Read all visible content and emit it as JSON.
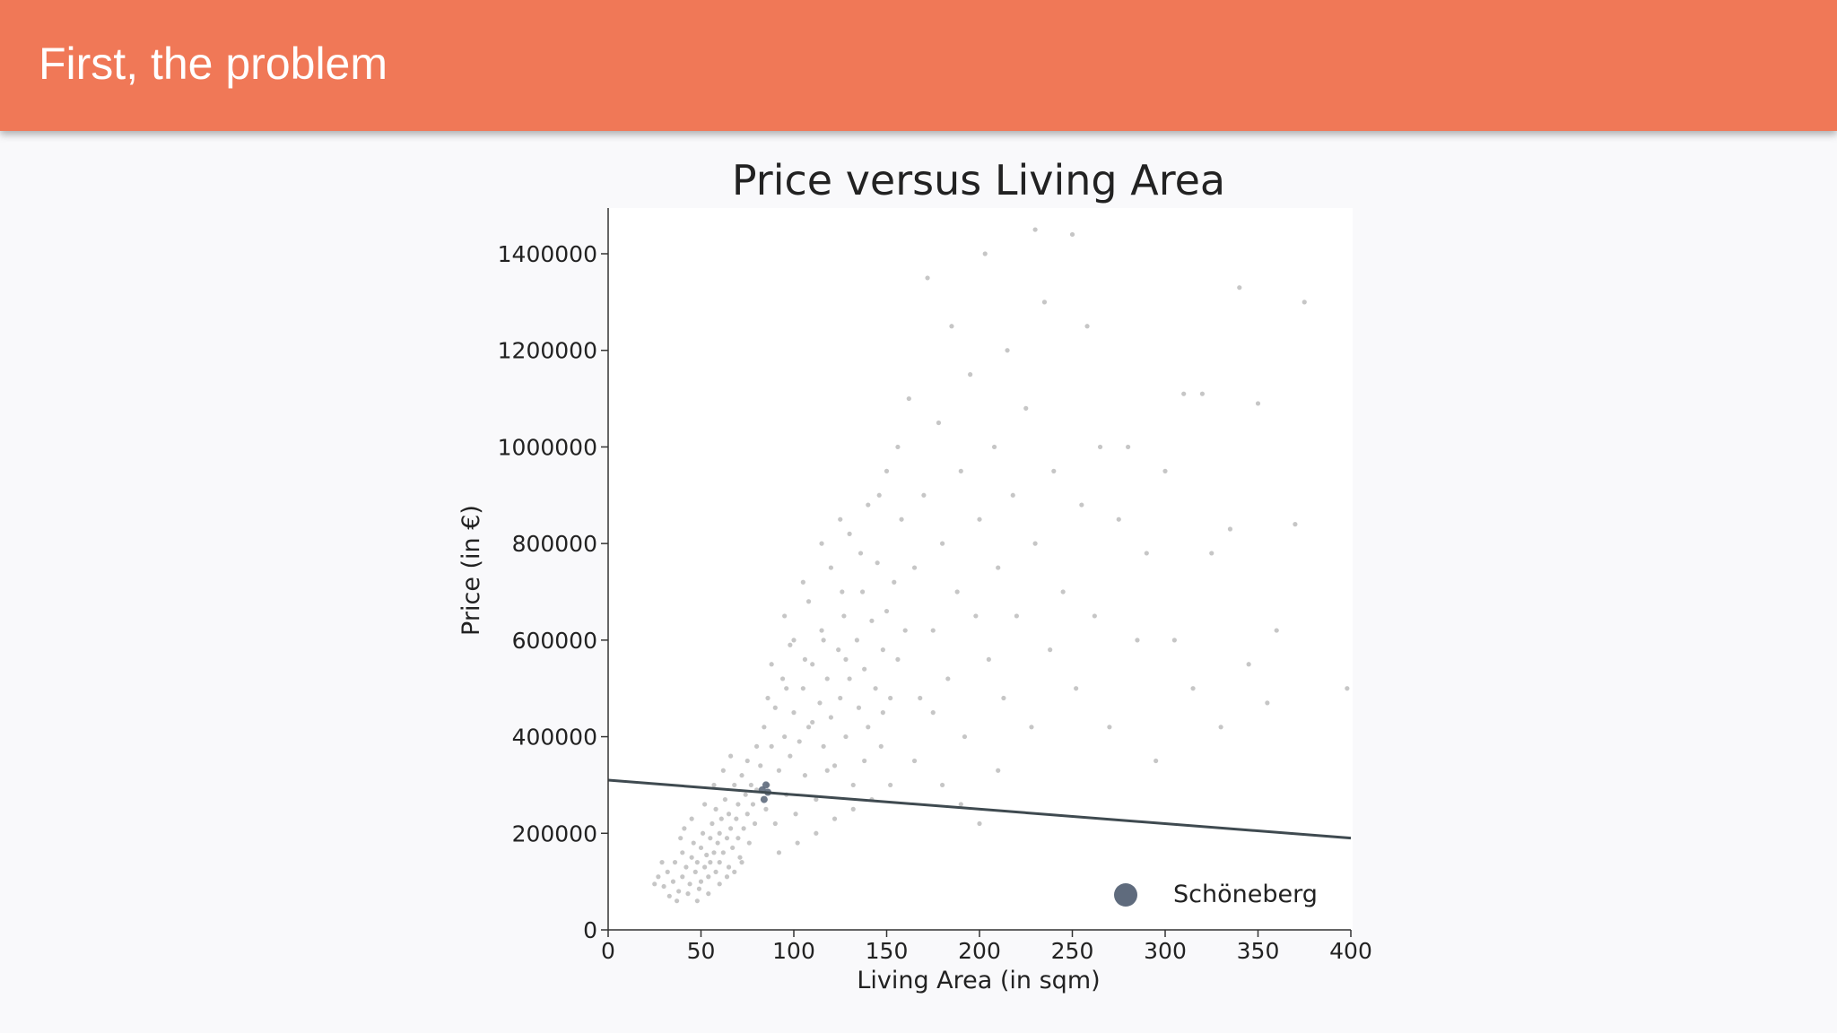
{
  "header": {
    "title": "First, the problem",
    "color": "#f07857"
  },
  "chart_data": {
    "type": "scatter",
    "title": "Price versus Living Area",
    "xlabel": "Living Area (in sqm)",
    "ylabel": "Price (in €)",
    "xlim": [
      0,
      400
    ],
    "ylim": [
      0,
      1500000
    ],
    "xticks": [
      0,
      50,
      100,
      150,
      200,
      250,
      300,
      350,
      400
    ],
    "yticks": [
      0,
      200000,
      400000,
      600000,
      800000,
      1000000,
      1200000,
      1400000
    ],
    "grid": false,
    "legend": {
      "placement": "bottom-right",
      "entries": [
        "Schöneberg"
      ]
    },
    "series": [
      {
        "color": "#808080",
        "points": [
          [
            30,
            90000
          ],
          [
            32,
            120000
          ],
          [
            35,
            100000
          ],
          [
            36,
            140000
          ],
          [
            38,
            80000
          ],
          [
            40,
            110000
          ],
          [
            40,
            160000
          ],
          [
            42,
            130000
          ],
          [
            44,
            95000
          ],
          [
            45,
            150000
          ],
          [
            46,
            180000
          ],
          [
            47,
            120000
          ],
          [
            48,
            140000
          ],
          [
            50,
            100000
          ],
          [
            50,
            170000
          ],
          [
            51,
            200000
          ],
          [
            52,
            130000
          ],
          [
            53,
            155000
          ],
          [
            54,
            110000
          ],
          [
            55,
            190000
          ],
          [
            55,
            140000
          ],
          [
            56,
            220000
          ],
          [
            57,
            160000
          ],
          [
            58,
            120000
          ],
          [
            58,
            250000
          ],
          [
            59,
            180000
          ],
          [
            60,
            140000
          ],
          [
            60,
            200000
          ],
          [
            61,
            230000
          ],
          [
            62,
            160000
          ],
          [
            63,
            270000
          ],
          [
            64,
            190000
          ],
          [
            65,
            130000
          ],
          [
            65,
            240000
          ],
          [
            66,
            210000
          ],
          [
            67,
            170000
          ],
          [
            68,
            300000
          ],
          [
            69,
            230000
          ],
          [
            70,
            190000
          ],
          [
            70,
            260000
          ],
          [
            71,
            150000
          ],
          [
            72,
            320000
          ],
          [
            73,
            210000
          ],
          [
            74,
            280000
          ],
          [
            75,
            240000
          ],
          [
            75,
            350000
          ],
          [
            76,
            180000
          ],
          [
            77,
            300000
          ],
          [
            78,
            260000
          ],
          [
            79,
            220000
          ],
          [
            80,
            380000
          ],
          [
            80,
            290000
          ],
          [
            33,
            70000
          ],
          [
            37,
            60000
          ],
          [
            43,
            75000
          ],
          [
            49,
            85000
          ],
          [
            27,
            110000
          ],
          [
            25,
            95000
          ],
          [
            29,
            140000
          ],
          [
            39,
            190000
          ],
          [
            41,
            210000
          ],
          [
            45,
            230000
          ],
          [
            52,
            260000
          ],
          [
            57,
            300000
          ],
          [
            62,
            330000
          ],
          [
            66,
            360000
          ],
          [
            48,
            60000
          ],
          [
            54,
            75000
          ],
          [
            60,
            95000
          ],
          [
            64,
            110000
          ],
          [
            68,
            120000
          ],
          [
            72,
            140000
          ],
          [
            82,
            340000
          ],
          [
            84,
            420000
          ],
          [
            85,
            250000
          ],
          [
            86,
            300000
          ],
          [
            88,
            380000
          ],
          [
            90,
            460000
          ],
          [
            90,
            220000
          ],
          [
            92,
            330000
          ],
          [
            94,
            520000
          ],
          [
            95,
            400000
          ],
          [
            96,
            280000
          ],
          [
            98,
            360000
          ],
          [
            100,
            450000
          ],
          [
            100,
            600000
          ],
          [
            101,
            240000
          ],
          [
            103,
            390000
          ],
          [
            105,
            500000
          ],
          [
            106,
            320000
          ],
          [
            108,
            680000
          ],
          [
            110,
            430000
          ],
          [
            110,
            550000
          ],
          [
            112,
            270000
          ],
          [
            114,
            470000
          ],
          [
            115,
            620000
          ],
          [
            116,
            380000
          ],
          [
            118,
            520000
          ],
          [
            120,
            750000
          ],
          [
            120,
            440000
          ],
          [
            122,
            340000
          ],
          [
            124,
            580000
          ],
          [
            125,
            480000
          ],
          [
            127,
            650000
          ],
          [
            128,
            400000
          ],
          [
            130,
            520000
          ],
          [
            130,
            820000
          ],
          [
            132,
            300000
          ],
          [
            134,
            600000
          ],
          [
            135,
            460000
          ],
          [
            137,
            700000
          ],
          [
            138,
            540000
          ],
          [
            140,
            420000
          ],
          [
            140,
            880000
          ],
          [
            142,
            640000
          ],
          [
            144,
            500000
          ],
          [
            145,
            760000
          ],
          [
            147,
            380000
          ],
          [
            148,
            580000
          ],
          [
            150,
            660000
          ],
          [
            150,
            950000
          ],
          [
            152,
            480000
          ],
          [
            154,
            720000
          ],
          [
            156,
            560000
          ],
          [
            158,
            850000
          ],
          [
            160,
            620000
          ],
          [
            95,
            650000
          ],
          [
            105,
            720000
          ],
          [
            115,
            800000
          ],
          [
            125,
            850000
          ],
          [
            88,
            550000
          ],
          [
            92,
            160000
          ],
          [
            102,
            180000
          ],
          [
            112,
            200000
          ],
          [
            122,
            230000
          ],
          [
            132,
            250000
          ],
          [
            142,
            270000
          ],
          [
            152,
            300000
          ],
          [
            98,
            590000
          ],
          [
            108,
            420000
          ],
          [
            118,
            330000
          ],
          [
            128,
            560000
          ],
          [
            138,
            350000
          ],
          [
            148,
            450000
          ],
          [
            86,
            480000
          ],
          [
            96,
            500000
          ],
          [
            106,
            560000
          ],
          [
            116,
            600000
          ],
          [
            126,
            700000
          ],
          [
            136,
            780000
          ],
          [
            146,
            900000
          ],
          [
            156,
            1000000
          ],
          [
            162,
            1100000
          ],
          [
            165,
            750000
          ],
          [
            168,
            480000
          ],
          [
            170,
            900000
          ],
          [
            172,
            1350000
          ],
          [
            175,
            620000
          ],
          [
            178,
            1050000
          ],
          [
            180,
            800000
          ],
          [
            183,
            520000
          ],
          [
            185,
            1250000
          ],
          [
            188,
            700000
          ],
          [
            190,
            950000
          ],
          [
            192,
            400000
          ],
          [
            195,
            1150000
          ],
          [
            198,
            650000
          ],
          [
            200,
            850000
          ],
          [
            203,
            1400000
          ],
          [
            205,
            560000
          ],
          [
            208,
            1000000
          ],
          [
            210,
            750000
          ],
          [
            213,
            480000
          ],
          [
            215,
            1200000
          ],
          [
            218,
            900000
          ],
          [
            220,
            650000
          ],
          [
            225,
            1080000
          ],
          [
            228,
            420000
          ],
          [
            230,
            800000
          ],
          [
            235,
            1300000
          ],
          [
            238,
            580000
          ],
          [
            240,
            950000
          ],
          [
            245,
            700000
          ],
          [
            250,
            1440000
          ],
          [
            252,
            500000
          ],
          [
            255,
            880000
          ],
          [
            258,
            1250000
          ],
          [
            262,
            650000
          ],
          [
            265,
            1000000
          ],
          [
            270,
            420000
          ],
          [
            275,
            850000
          ],
          [
            280,
            1000000
          ],
          [
            285,
            600000
          ],
          [
            290,
            780000
          ],
          [
            295,
            350000
          ],
          [
            300,
            950000
          ],
          [
            305,
            600000
          ],
          [
            310,
            1110000
          ],
          [
            315,
            500000
          ],
          [
            320,
            1110000
          ],
          [
            325,
            780000
          ],
          [
            330,
            420000
          ],
          [
            335,
            830000
          ],
          [
            340,
            1330000
          ],
          [
            345,
            550000
          ],
          [
            350,
            1090000
          ],
          [
            355,
            470000
          ],
          [
            375,
            1300000
          ],
          [
            370,
            840000
          ],
          [
            398,
            500000
          ],
          [
            360,
            620000
          ],
          [
            180,
            300000
          ],
          [
            200,
            220000
          ],
          [
            165,
            350000
          ],
          [
            190,
            260000
          ],
          [
            175,
            450000
          ],
          [
            210,
            330000
          ],
          [
            230,
            1450000
          ]
        ]
      },
      {
        "name": "Schöneberg",
        "color": "#5f6b7d",
        "points": [
          [
            83,
            290000
          ],
          [
            85,
            300000
          ],
          [
            84,
            270000
          ],
          [
            86,
            285000
          ]
        ]
      }
    ],
    "regression_line": {
      "color": "#3f4a50",
      "points": [
        [
          0,
          310000
        ],
        [
          400,
          190000
        ]
      ]
    }
  }
}
